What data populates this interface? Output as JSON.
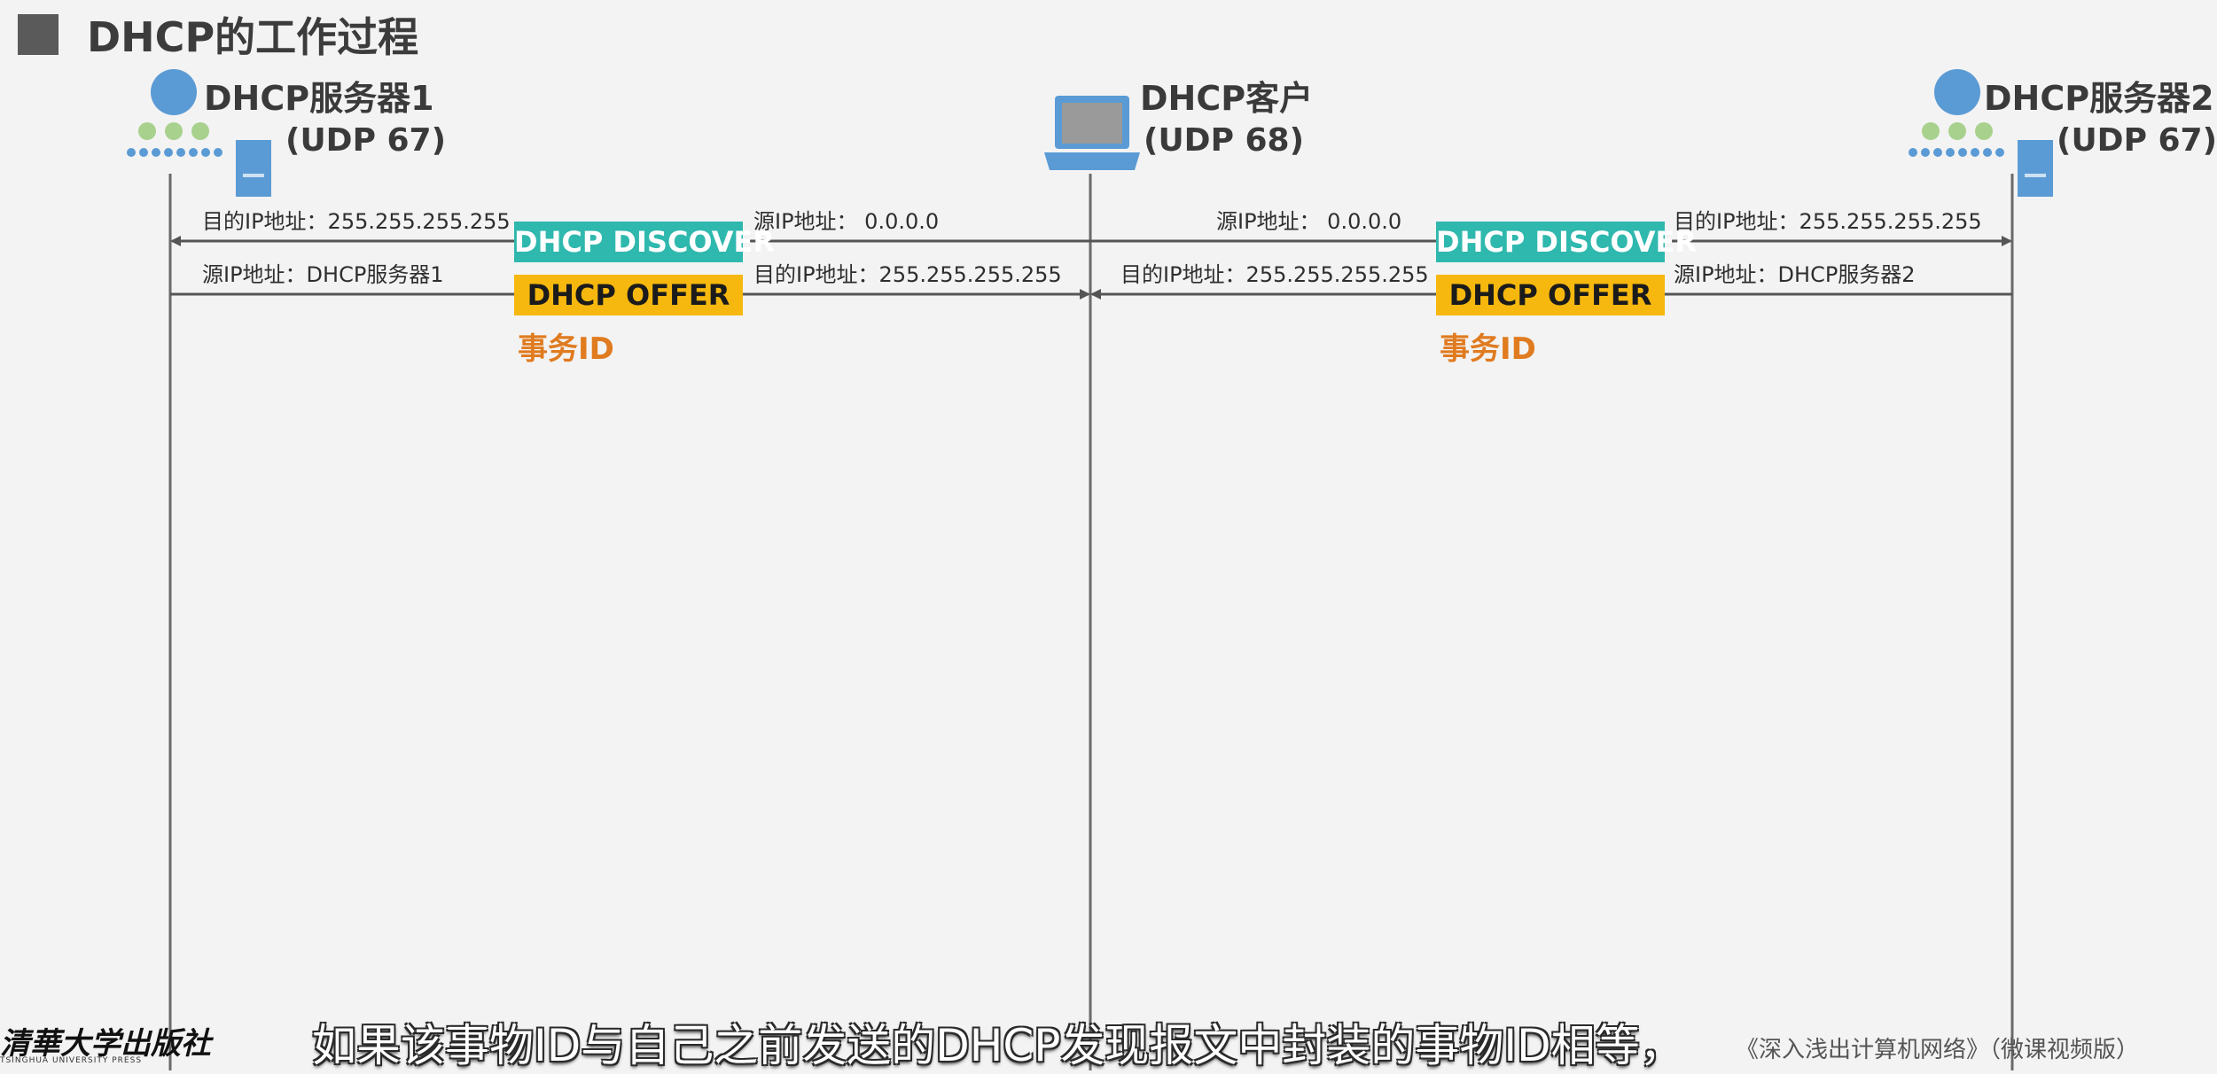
{
  "title": "DHCP的工作过程",
  "nodes": {
    "server1": {
      "name": "DHCP服务器1",
      "port": "(UDP 67)",
      "icon": "server-icon"
    },
    "client": {
      "name": "DHCP客户",
      "port": "(UDP 68)",
      "icon": "laptop-icon"
    },
    "server2": {
      "name": "DHCP服务器2",
      "port": "(UDP 67)",
      "icon": "server-icon"
    }
  },
  "exchanges": {
    "left": {
      "discover": {
        "label": "DHCP DISCOVER",
        "dest_ip": "目的IP地址：255.255.255.255",
        "src_ip": "源IP地址：    0.0.0.0"
      },
      "offer": {
        "label": "DHCP OFFER",
        "src_ip": "源IP地址：DHCP服务器1",
        "dest_ip": "目的IP地址：255.255.255.255"
      },
      "transaction_id": "事务ID"
    },
    "right": {
      "discover": {
        "label": "DHCP DISCOVER",
        "src_ip": "源IP地址：    0.0.0.0",
        "dest_ip": "目的IP地址：255.255.255.255"
      },
      "offer": {
        "label": "DHCP OFFER",
        "dest_ip": "目的IP地址：255.255.255.255",
        "src_ip": "源IP地址：DHCP服务器2"
      },
      "transaction_id": "事务ID"
    }
  },
  "subtitle": "如果该事物ID与自己之前发送的DHCP发现报文中封装的事物ID相等，",
  "footer": {
    "book": "《深入浅出计算机网络》（微课视频版）",
    "publisher_cn": "清華大学出版社",
    "publisher_en": "TSINGHUA UNIVERSITY PRESS"
  },
  "colors": {
    "discover": "#2fb8ae",
    "offer": "#f6b80e",
    "transaction_id": "#e07b20",
    "icon_blue": "#5b9bd5",
    "icon_green": "#a9d18e"
  }
}
